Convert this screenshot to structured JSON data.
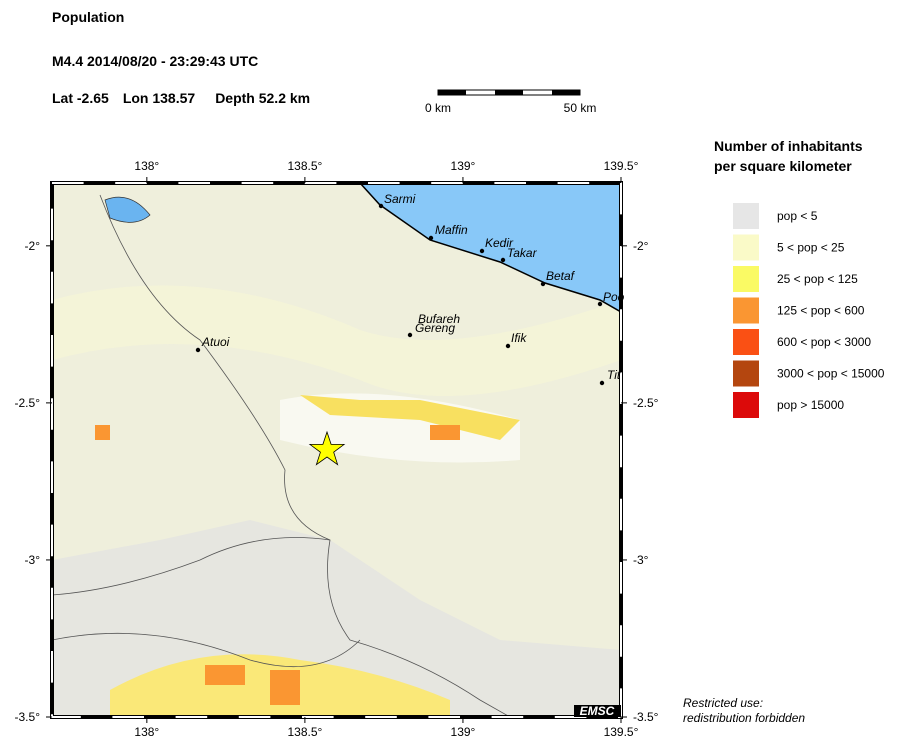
{
  "header": {
    "title": "Population",
    "event": "M4.4  2014/08/20 - 23:29:43 UTC",
    "lat": {
      "label": "Lat",
      "value": -2.65
    },
    "lon": {
      "label": "Lon",
      "value": 138.57
    },
    "depth": "Depth  52.2 km"
  },
  "scale": {
    "start": "0 km",
    "end": "50 km"
  },
  "legend": {
    "title": [
      "Number of inhabitants",
      "per square kilometer"
    ],
    "items": [
      {
        "name": "pop < 5",
        "color": "#e6e6e6"
      },
      {
        "name": "5 < pop < 25",
        "color": "#fafac8"
      },
      {
        "name": "25 < pop < 125",
        "color": "#fafa64"
      },
      {
        "name": "125 < pop < 600",
        "color": "#fa9632"
      },
      {
        "name": "600 < pop < 3000",
        "color": "#fa5014"
      },
      {
        "name": "3000 < pop < 15000",
        "color": "#b4460f"
      },
      {
        "name": "pop > 15000",
        "color": "#dc0a0a"
      }
    ]
  },
  "map": {
    "lon_range": [
      137.7,
      139.5
    ],
    "lat_range": [
      -3.5,
      -1.8
    ],
    "lon_ticks": [
      {
        "value": 138,
        "label": "138°"
      },
      {
        "value": 138.5,
        "label": "138.5°"
      },
      {
        "value": 139,
        "label": "139°"
      },
      {
        "value": 139.5,
        "label": "139.5°"
      }
    ],
    "lat_ticks": [
      {
        "value": -2,
        "label": "-2°"
      },
      {
        "value": -2.5,
        "label": "-2.5°"
      },
      {
        "value": -3,
        "label": "-3°"
      },
      {
        "value": -3.5,
        "label": "-3.5°"
      }
    ],
    "towns": [
      "Sarmi",
      "Maffin",
      "Kedir",
      "Takar",
      "Betaf",
      "Poo",
      "Bufareh",
      "Gereng",
      "Ifik",
      "Atuoi",
      "Tit"
    ],
    "credit": "EMSC"
  },
  "notice": [
    "Restricted use:",
    "redistribution forbidden"
  ]
}
